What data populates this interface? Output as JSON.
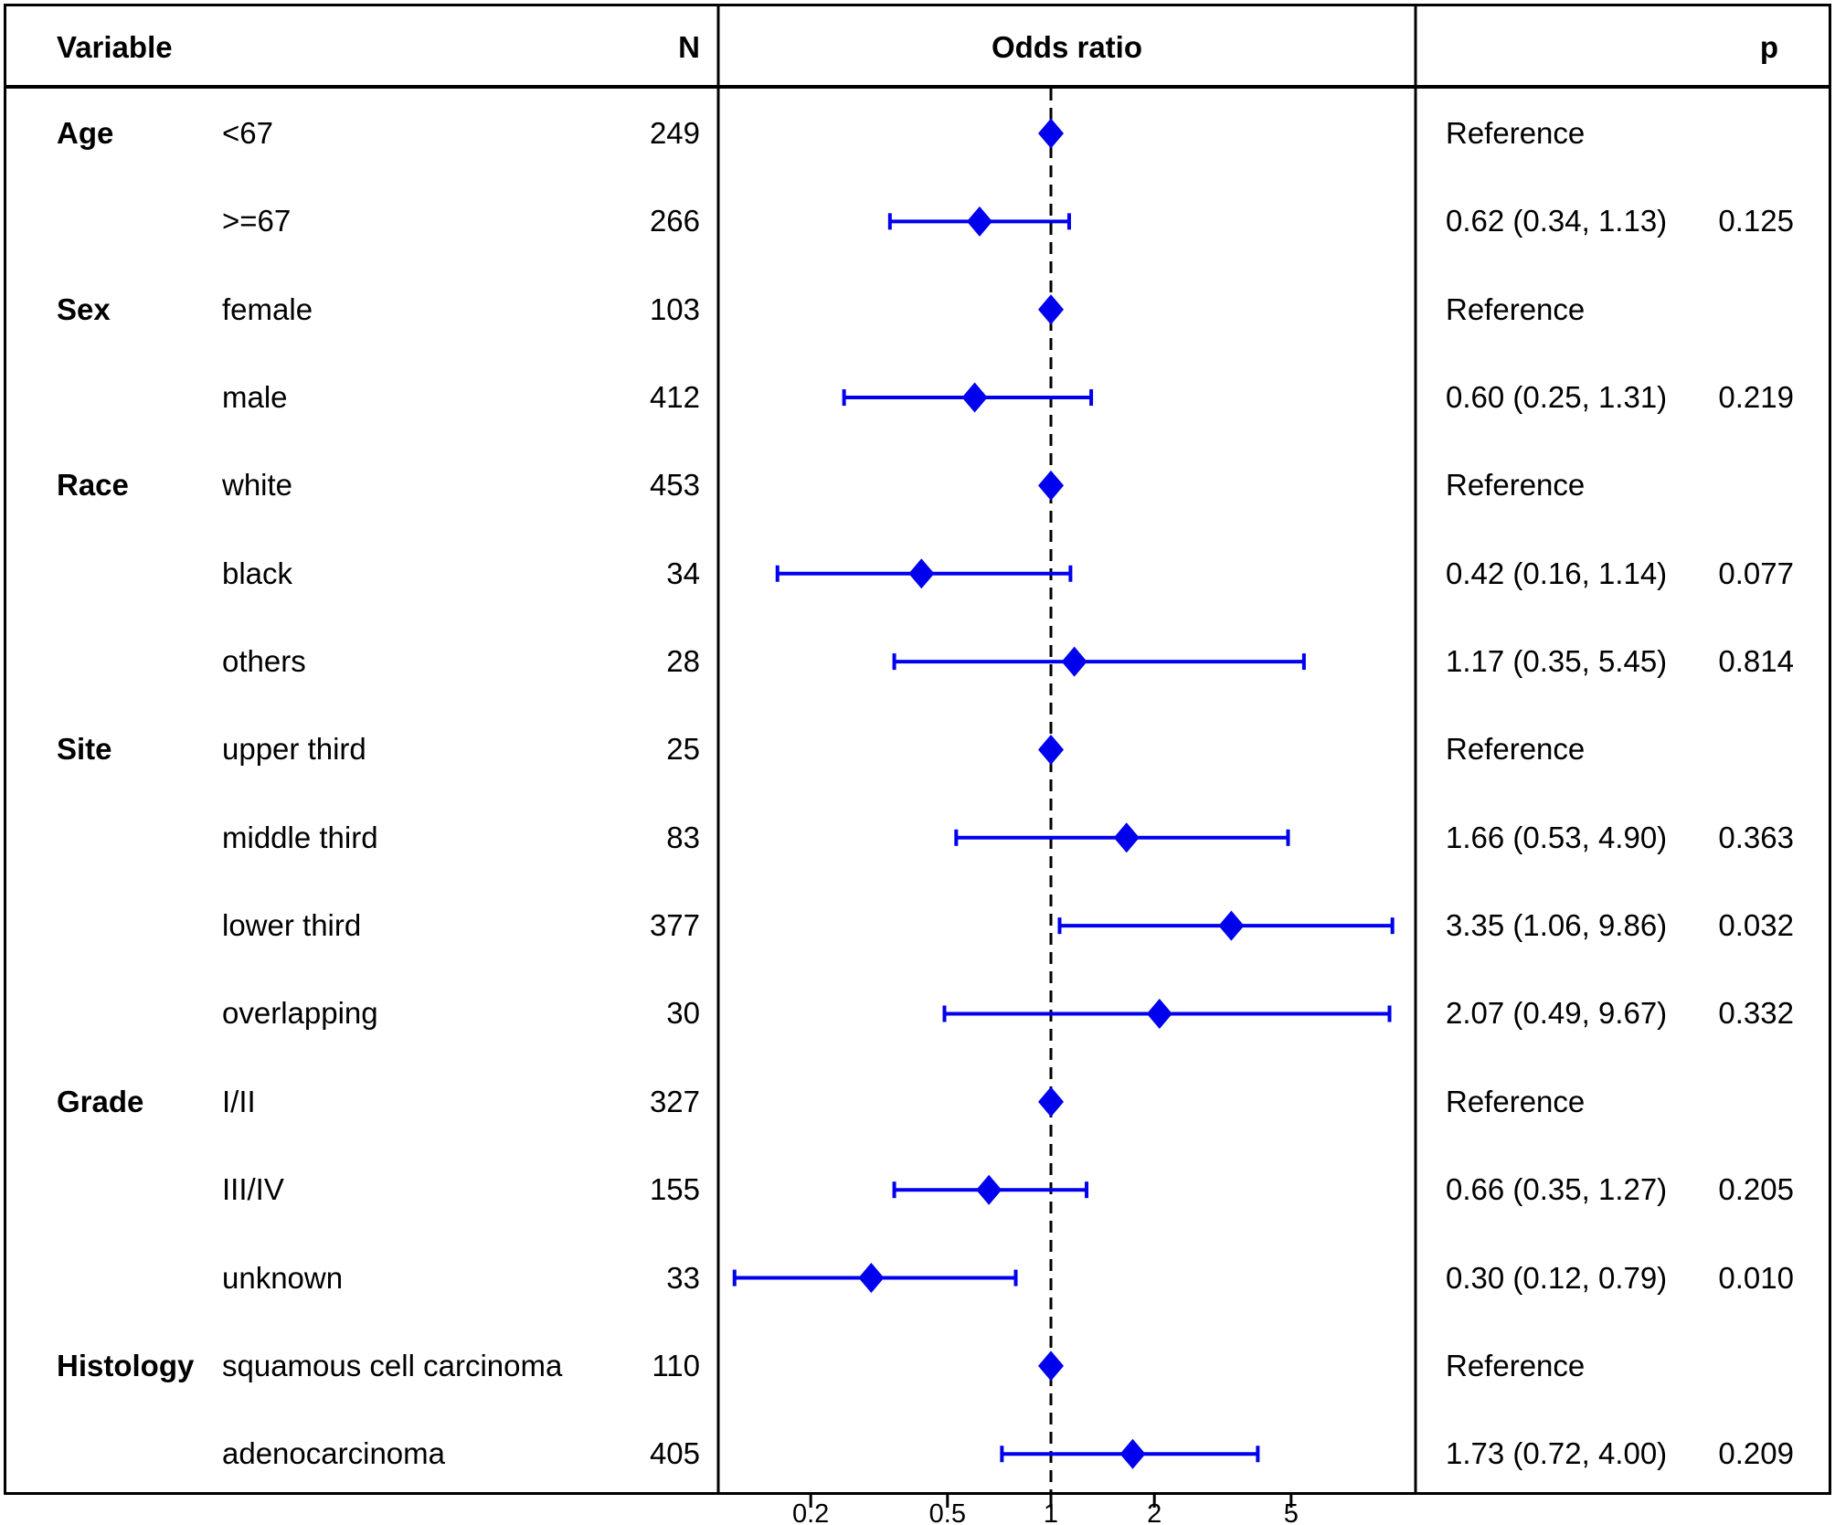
{
  "figure": {
    "headers": {
      "variable": "Variable",
      "n": "N",
      "odds_ratio": "Odds ratio",
      "p": "p"
    }
  },
  "colors": {
    "marker_blue": "#0000EE",
    "line_black": "#000000",
    "text_black": "#000000",
    "background": "#FFFFFF"
  },
  "chart_data": {
    "type": "scatter",
    "subtype": "forest-plot",
    "title": "Odds ratio",
    "x_scale": "log10",
    "xlim": [
      0.1,
      11
    ],
    "x_ticks": [
      0.2,
      0.5,
      1,
      2,
      5
    ],
    "x_tick_labels": [
      "0.2",
      "0.5",
      "1",
      "2",
      "5"
    ],
    "reference_line_x": 1,
    "marker_shape": "diamond",
    "rows": [
      {
        "group": "Age",
        "level": "<67",
        "n": "249",
        "or": 1,
        "lo": null,
        "hi": null,
        "or_text": "Reference",
        "p": ""
      },
      {
        "group": "",
        "level": ">=67",
        "n": "266",
        "or": 0.62,
        "lo": 0.34,
        "hi": 1.13,
        "or_text": "0.62 (0.34, 1.13)",
        "p": "0.125"
      },
      {
        "group": "Sex",
        "level": "female",
        "n": "103",
        "or": 1,
        "lo": null,
        "hi": null,
        "or_text": "Reference",
        "p": ""
      },
      {
        "group": "",
        "level": "male",
        "n": "412",
        "or": 0.6,
        "lo": 0.25,
        "hi": 1.31,
        "or_text": "0.60 (0.25, 1.31)",
        "p": "0.219"
      },
      {
        "group": "Race",
        "level": "white",
        "n": "453",
        "or": 1,
        "lo": null,
        "hi": null,
        "or_text": "Reference",
        "p": ""
      },
      {
        "group": "",
        "level": "black",
        "n": "34",
        "or": 0.42,
        "lo": 0.16,
        "hi": 1.14,
        "or_text": "0.42 (0.16, 1.14)",
        "p": "0.077"
      },
      {
        "group": "",
        "level": "others",
        "n": "28",
        "or": 1.17,
        "lo": 0.35,
        "hi": 5.45,
        "or_text": "1.17 (0.35, 5.45)",
        "p": "0.814"
      },
      {
        "group": "Site",
        "level": "upper third",
        "n": "25",
        "or": 1,
        "lo": null,
        "hi": null,
        "or_text": "Reference",
        "p": ""
      },
      {
        "group": "",
        "level": "middle third",
        "n": "83",
        "or": 1.66,
        "lo": 0.53,
        "hi": 4.9,
        "or_text": "1.66 (0.53, 4.90)",
        "p": "0.363"
      },
      {
        "group": "",
        "level": "lower third",
        "n": "377",
        "or": 3.35,
        "lo": 1.06,
        "hi": 9.86,
        "or_text": "3.35 (1.06, 9.86)",
        "p": "0.032"
      },
      {
        "group": "",
        "level": "overlapping",
        "n": "30",
        "or": 2.07,
        "lo": 0.49,
        "hi": 9.67,
        "or_text": "2.07 (0.49, 9.67)",
        "p": "0.332"
      },
      {
        "group": "Grade",
        "level": "I/II",
        "n": "327",
        "or": 1,
        "lo": null,
        "hi": null,
        "or_text": "Reference",
        "p": ""
      },
      {
        "group": "",
        "level": "III/IV",
        "n": "155",
        "or": 0.66,
        "lo": 0.35,
        "hi": 1.27,
        "or_text": "0.66 (0.35, 1.27)",
        "p": "0.205"
      },
      {
        "group": "",
        "level": "unknown",
        "n": "33",
        "or": 0.3,
        "lo": 0.12,
        "hi": 0.79,
        "or_text": "0.30 (0.12, 0.79)",
        "p": "0.010"
      },
      {
        "group": "Histology",
        "level": "squamous cell carcinoma",
        "n": "110",
        "or": 1,
        "lo": null,
        "hi": null,
        "or_text": "Reference",
        "p": ""
      },
      {
        "group": "",
        "level": "adenocarcinoma",
        "n": "405",
        "or": 1.73,
        "lo": 0.72,
        "hi": 4.0,
        "or_text": "1.73 (0.72, 4.00)",
        "p": "0.209"
      }
    ]
  }
}
